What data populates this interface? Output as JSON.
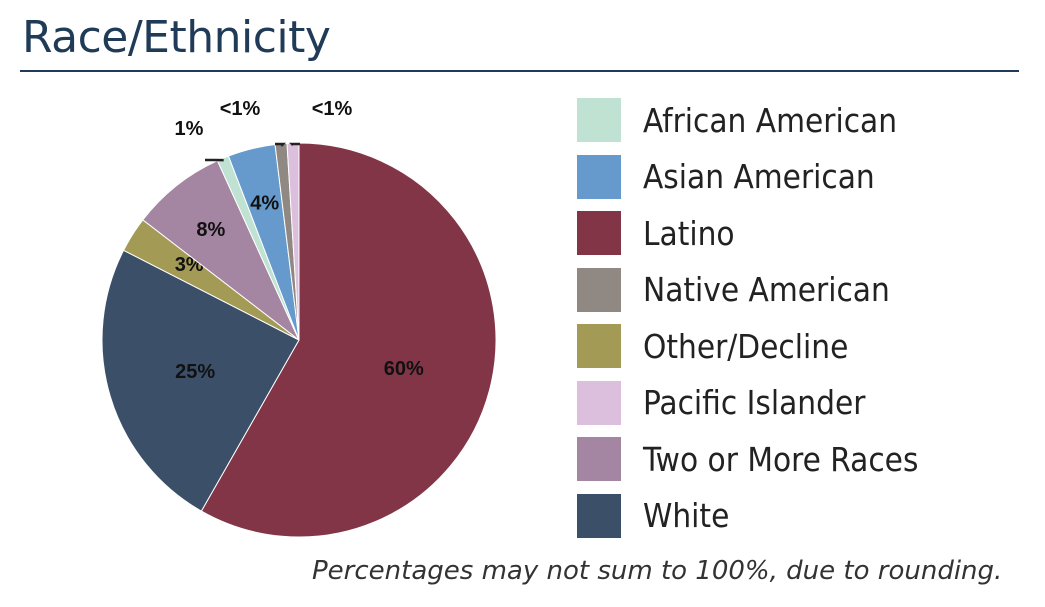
{
  "title": "Race/Ethnicity",
  "note": "Percentages may not sum to 100%, due to rounding.",
  "chart_data": {
    "type": "pie",
    "title": "Race/Ethnicity",
    "start": "top, clockwise",
    "legend_placement": "right",
    "slices": [
      {
        "name": "Latino",
        "value": 60,
        "label": "60%",
        "color": "#813547"
      },
      {
        "name": "White",
        "value": 25,
        "label": "25%",
        "color": "#3b5068"
      },
      {
        "name": "Other/Decline",
        "value": 3,
        "label": "3%",
        "color": "#a39a55"
      },
      {
        "name": "Two or More Races",
        "value": 8,
        "label": "8%",
        "color": "#a486a2"
      },
      {
        "name": "African American",
        "value": 1,
        "label": "1%",
        "color": "#bfe2d3"
      },
      {
        "name": "Asian American",
        "value": 4,
        "label": "4%",
        "color": "#6699cc"
      },
      {
        "name": "Native American",
        "value": 1,
        "label": "<1%",
        "color": "#908883"
      },
      {
        "name": "Pacific Islander",
        "value": 1,
        "label": "<1%",
        "color": "#dbbfdc"
      }
    ],
    "legend": [
      "African American",
      "Asian American",
      "Latino",
      "Native American",
      "Other/Decline",
      "Pacific Islander",
      "Two or More Races",
      "White"
    ]
  }
}
